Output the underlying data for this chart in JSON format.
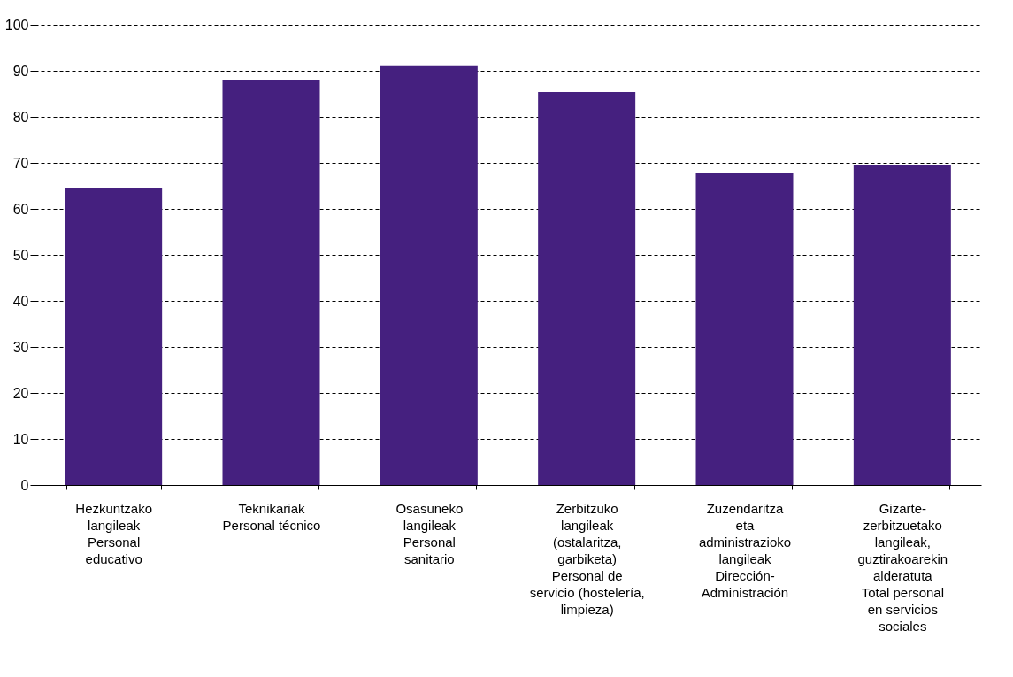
{
  "chart_data": {
    "type": "bar",
    "categories": [
      "Hezkuntzako\nlangileak\nPersonal\neducativo",
      "Teknikariak\nPersonal técnico",
      "Osasuneko\nlangileak\nPersonal\nsanitario",
      "Zerbitzuko\nlangileak\n(ostalaritza,\ngarbiketa)\nPersonal de\nservicio (hostelería,\nlimpieza)",
      "Zuzendaritza\neta\nadministrazioko\nlangileak\nDirección-\nAdministración",
      "Gizarte-\nzerbitzuetako\nlangileak,\nguztirakoarekin\nalderatuta\nTotal personal\nen servicios\nsociales"
    ],
    "values": [
      64.6,
      88.1,
      91.0,
      85.4,
      67.7,
      69.4
    ],
    "color": "#45207f",
    "ylim": [
      0,
      100
    ],
    "yticks": [
      0,
      10,
      20,
      30,
      40,
      50,
      60,
      70,
      80,
      90,
      100
    ],
    "grid": "y"
  }
}
